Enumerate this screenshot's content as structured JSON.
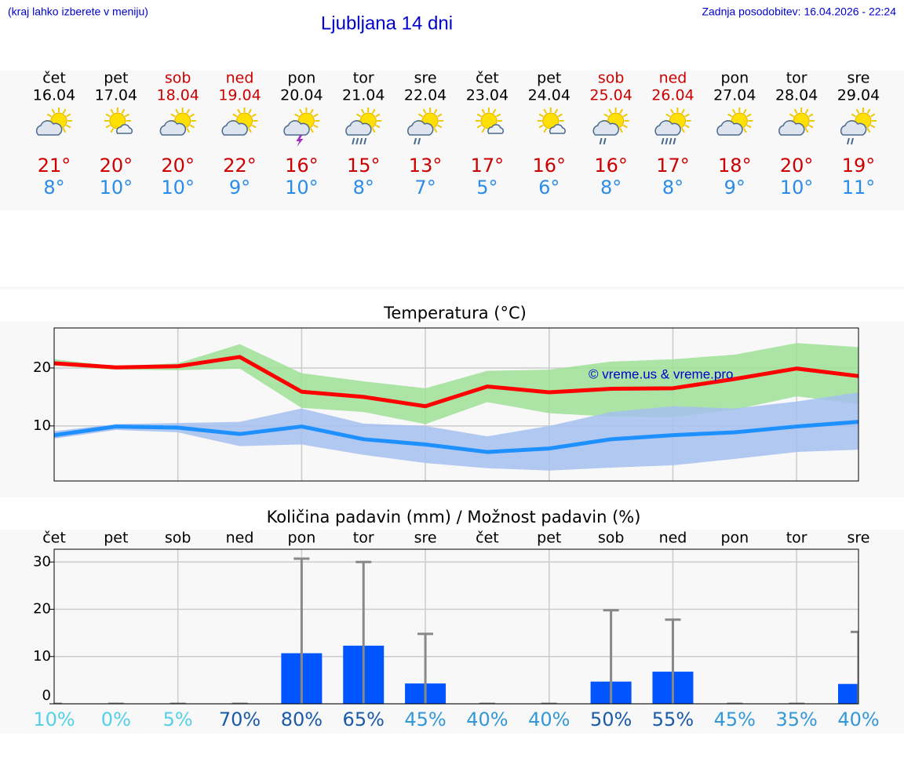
{
  "header": {
    "note": "(kraj lahko izberete v meniju)",
    "title": "Ljubljana 14 dni",
    "updated": "Zadnja posodobitev: 16.04.2026 - 22:24"
  },
  "days": [
    {
      "name": "čet",
      "date": "16.04",
      "high": "21°",
      "low": "8°",
      "color": "#000000"
    },
    {
      "name": "pet",
      "date": "17.04",
      "high": "20°",
      "low": "10°",
      "color": "#000000"
    },
    {
      "name": "sob",
      "date": "18.04",
      "high": "20°",
      "low": "10°",
      "color": "#cc0000"
    },
    {
      "name": "ned",
      "date": "19.04",
      "high": "22°",
      "low": "9°",
      "color": "#cc0000"
    },
    {
      "name": "pon",
      "date": "20.04",
      "high": "16°",
      "low": "10°",
      "color": "#000000"
    },
    {
      "name": "tor",
      "date": "21.04",
      "high": "15°",
      "low": "8°",
      "color": "#000000"
    },
    {
      "name": "sre",
      "date": "22.04",
      "high": "13°",
      "low": "7°",
      "color": "#000000"
    },
    {
      "name": "čet",
      "date": "23.04",
      "high": "17°",
      "low": "5°",
      "color": "#000000"
    },
    {
      "name": "pet",
      "date": "24.04",
      "high": "16°",
      "low": "6°",
      "color": "#000000"
    },
    {
      "name": "sob",
      "date": "25.04",
      "high": "16°",
      "low": "8°",
      "color": "#cc0000"
    },
    {
      "name": "ned",
      "date": "26.04",
      "high": "17°",
      "low": "8°",
      "color": "#cc0000"
    },
    {
      "name": "pon",
      "date": "27.04",
      "high": "18°",
      "low": "9°",
      "color": "#000000"
    },
    {
      "name": "tor",
      "date": "28.04",
      "high": "20°",
      "low": "10°",
      "color": "#000000"
    },
    {
      "name": "sre",
      "date": "29.04",
      "high": "19°",
      "low": "11°",
      "color": "#000000"
    }
  ],
  "chart_data": [
    {
      "type": "band-line",
      "title": "Temperatura (°C)",
      "watermark": "© vreme.us & vreme.pro",
      "categories": [
        null,
        null,
        null,
        null,
        null,
        null,
        null,
        null,
        null,
        null,
        null,
        null,
        null,
        null
      ],
      "ylim": [
        0.5,
        26.9
      ],
      "yticks": [
        10,
        20
      ],
      "grid": true,
      "series": [
        {
          "color": "#ff0000",
          "band_color": "#9de096",
          "values": [
            20.8,
            20.1,
            20.3,
            21.9,
            15.9,
            15.0,
            13.4,
            16.8,
            15.8,
            16.4,
            16.5,
            18.1,
            19.9,
            18.6
          ],
          "band": {
            "high": [
              21.5,
              20.3,
              20.8,
              24.1,
              19.1,
              17.7,
              16.5,
              19.5,
              19.7,
              21.1,
              21.5,
              22.3,
              24.3,
              23.6
            ],
            "low": [
              20.4,
              19.7,
              19.6,
              19.9,
              13.1,
              12.4,
              10.3,
              14.1,
              12.2,
              11.6,
              11.5,
              12.8,
              15.1,
              13.8
            ]
          }
        },
        {
          "color": "#1e90ff",
          "band_color": "#a4bff0",
          "values": [
            8.4,
            9.9,
            9.7,
            8.6,
            9.9,
            7.7,
            6.8,
            5.5,
            6.1,
            7.7,
            8.4,
            8.9,
            9.9,
            10.7
          ],
          "band": {
            "high": [
              9.1,
              10.3,
              10.5,
              10.7,
              13.0,
              10.4,
              10.0,
              8.2,
              10.0,
              12.4,
              13.4,
              13.0,
              14.2,
              15.8
            ],
            "low": [
              7.8,
              9.3,
              8.9,
              6.5,
              6.8,
              5.0,
              3.6,
              2.7,
              2.3,
              2.8,
              3.2,
              4.3,
              5.5,
              5.9
            ]
          }
        }
      ]
    },
    {
      "type": "bar",
      "title": "Količina padavin (mm) / Možnost padavin (%)",
      "categories": [
        "čet",
        "pet",
        "sob",
        "ned",
        "pon",
        "tor",
        "sre",
        "čet",
        "pet",
        "sob",
        "ned",
        "pon",
        "tor",
        "sre"
      ],
      "ylim": [
        0,
        32.7
      ],
      "yticks": [
        0,
        10,
        20,
        30
      ],
      "grid": true,
      "series": [
        {
          "color": "#0055ff",
          "error_color": "#888888",
          "values": [
            0,
            0,
            0,
            0,
            10.7,
            12.3,
            4.3,
            0,
            0,
            4.7,
            6.8,
            0,
            0,
            4.2
          ],
          "max": [
            0,
            0,
            0,
            0,
            30.7,
            30.0,
            14.8,
            0,
            0,
            19.8,
            17.8,
            0,
            0,
            15.2
          ]
        }
      ],
      "probability": {
        "values": [
          10,
          0,
          5,
          70,
          80,
          65,
          45,
          40,
          40,
          50,
          55,
          45,
          35,
          40
        ],
        "value_labels": [
          "10%",
          "0%",
          "5%",
          "70%",
          "80%",
          "65%",
          "45%",
          "40%",
          "40%",
          "50%",
          "55%",
          "45%",
          "35%",
          "40%"
        ],
        "colors": [
          "#55d0e8",
          "#55d0e8",
          "#55d0e8",
          "#1a5aa8",
          "#1a5aa8",
          "#1a5aa8",
          "#3399d6",
          "#3399d6",
          "#3399d6",
          "#1a5aa8",
          "#1a5aa8",
          "#3399d6",
          "#3399d6",
          "#3399d6"
        ]
      }
    }
  ]
}
